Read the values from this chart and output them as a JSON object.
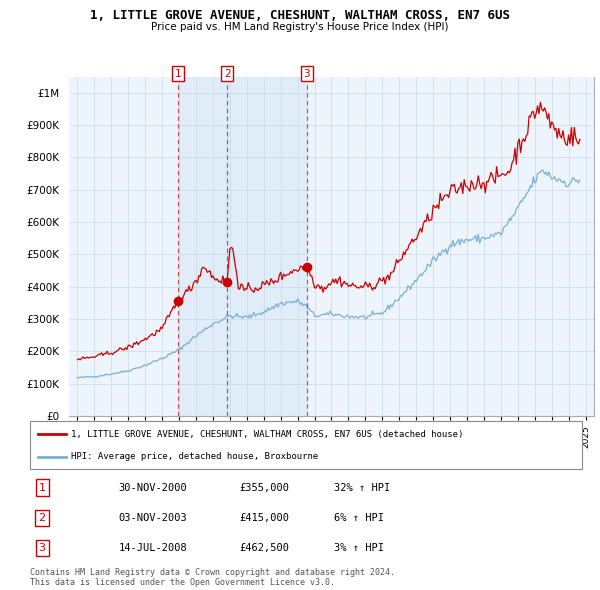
{
  "title": "1, LITTLE GROVE AVENUE, CHESHUNT, WALTHAM CROSS, EN7 6US",
  "subtitle": "Price paid vs. HM Land Registry's House Price Index (HPI)",
  "legend_label_red": "1, LITTLE GROVE AVENUE, CHESHUNT, WALTHAM CROSS, EN7 6US (detached house)",
  "legend_label_blue": "HPI: Average price, detached house, Broxbourne",
  "footer": "Contains HM Land Registry data © Crown copyright and database right 2024.\nThis data is licensed under the Open Government Licence v3.0.",
  "sales": [
    {
      "num": 1,
      "date": "30-NOV-2000",
      "price": "£355,000",
      "hpi": "32% ↑ HPI",
      "year": 2000.917
    },
    {
      "num": 2,
      "date": "03-NOV-2003",
      "price": "£415,000",
      "hpi": "6% ↑ HPI",
      "year": 2003.836
    },
    {
      "num": 3,
      "date": "14-JUL-2008",
      "price": "£462,500",
      "hpi": "3% ↑ HPI",
      "year": 2008.536
    }
  ],
  "sale_prices": [
    355000,
    415000,
    462500
  ],
  "red_color": "#cc0000",
  "blue_color": "#7ab0d4",
  "shade_color": "#dce9f5",
  "bg_color": "#ffffff",
  "grid_color": "#c8d8e8",
  "dot_color": "#cc0000",
  "ylim": [
    0,
    1050000
  ],
  "xlim": [
    1994.5,
    2025.5
  ],
  "yticks": [
    0,
    100000,
    200000,
    300000,
    400000,
    500000,
    600000,
    700000,
    800000,
    900000,
    1000000
  ],
  "ytick_labels": [
    "£0",
    "£100K",
    "£200K",
    "£300K",
    "£400K",
    "£500K",
    "£600K",
    "£700K",
    "£800K",
    "£900K",
    "£1M"
  ],
  "xticks": [
    1995,
    1996,
    1997,
    1998,
    1999,
    2000,
    2001,
    2002,
    2003,
    2004,
    2005,
    2006,
    2007,
    2008,
    2009,
    2010,
    2011,
    2012,
    2013,
    2014,
    2015,
    2016,
    2017,
    2018,
    2019,
    2020,
    2021,
    2022,
    2023,
    2024,
    2025
  ]
}
